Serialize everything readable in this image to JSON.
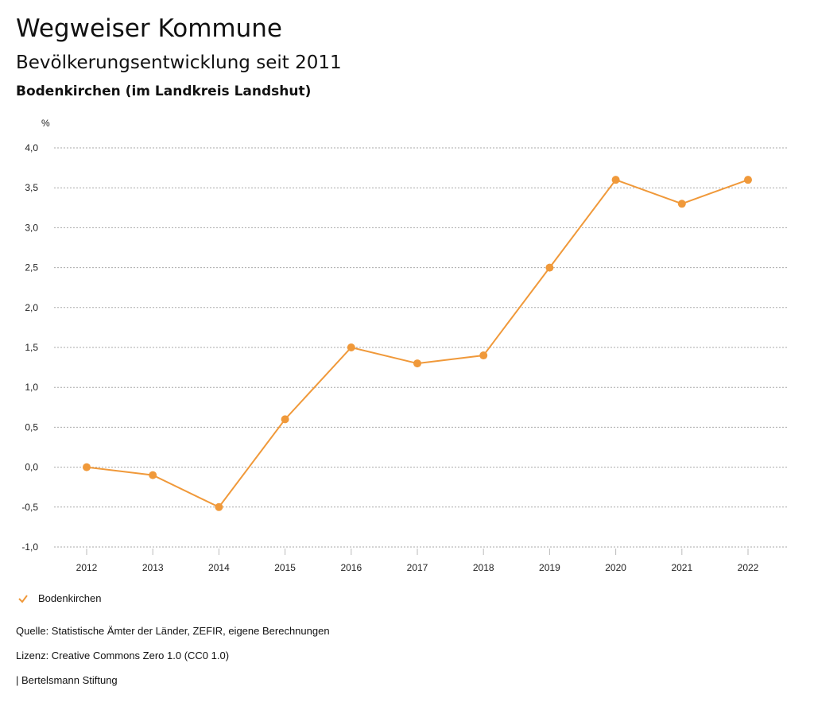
{
  "header": {
    "title": "Wegweiser Kommune",
    "subtitle": "Bevölkerungsentwicklung seit 2011",
    "region": "Bodenkirchen (im Landkreis Landshut)"
  },
  "chart_data": {
    "type": "line",
    "ylabel": "%",
    "ylim": [
      -1.0,
      4.0
    ],
    "yticks": [
      4.0,
      3.5,
      3.0,
      2.5,
      2.0,
      1.5,
      1.0,
      0.5,
      0.0,
      -0.5,
      -1.0
    ],
    "ytick_labels": [
      "4,0",
      "3,5",
      "3,0",
      "2,5",
      "2,0",
      "1,5",
      "1,0",
      "0,5",
      "0,0",
      "-0,5",
      "-1,0"
    ],
    "categories": [
      "2012",
      "2013",
      "2014",
      "2015",
      "2016",
      "2017",
      "2018",
      "2019",
      "2020",
      "2021",
      "2022"
    ],
    "series": [
      {
        "name": "Bodenkirchen",
        "color": "#f0993a",
        "values": [
          0.0,
          -0.1,
          -0.5,
          0.6,
          1.5,
          1.3,
          1.4,
          2.5,
          3.6,
          3.3,
          3.6
        ]
      }
    ],
    "grid": true,
    "legend": "bottom-left"
  },
  "legend": {
    "label": "Bodenkirchen",
    "icon": "check-icon"
  },
  "footer": {
    "source": "Quelle: Statistische Ämter der Länder, ZEFIR, eigene Berechnungen",
    "license": "Lizenz: Creative Commons Zero 1.0 (CC0 1.0)",
    "publisher": "| Bertelsmann Stiftung"
  }
}
